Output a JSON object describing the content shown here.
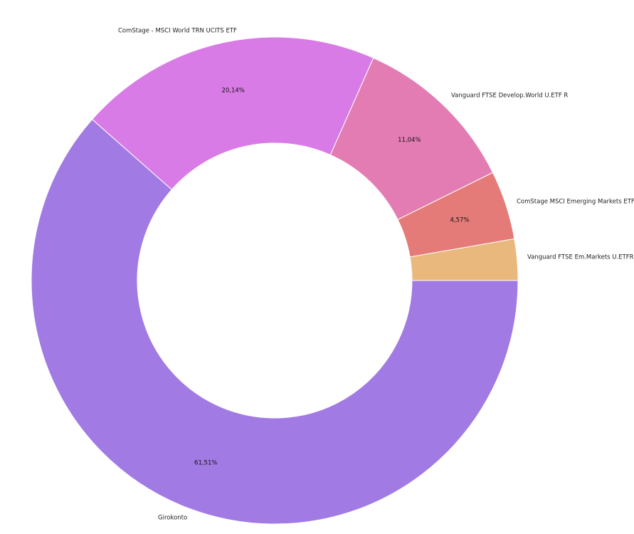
{
  "chart_data": {
    "type": "pie",
    "donut": true,
    "categories": [
      "Girokonto",
      "ComStage - MSCI World TRN UCITS ETF",
      "Vanguard FTSE Develop.World U.ETF R",
      "ComStage MSCI Emerging Markets ETF",
      "Vanguard FTSE Em.Markets U.ETFR"
    ],
    "values": [
      61.51,
      20.14,
      11.04,
      4.57,
      2.74
    ],
    "value_labels": [
      "61,51%",
      "20,14%",
      "11,04%",
      "4,57%",
      ""
    ],
    "colors": [
      "#a17be3",
      "#d97be6",
      "#e47cb4",
      "#e57b78",
      "#e8b87d"
    ]
  }
}
